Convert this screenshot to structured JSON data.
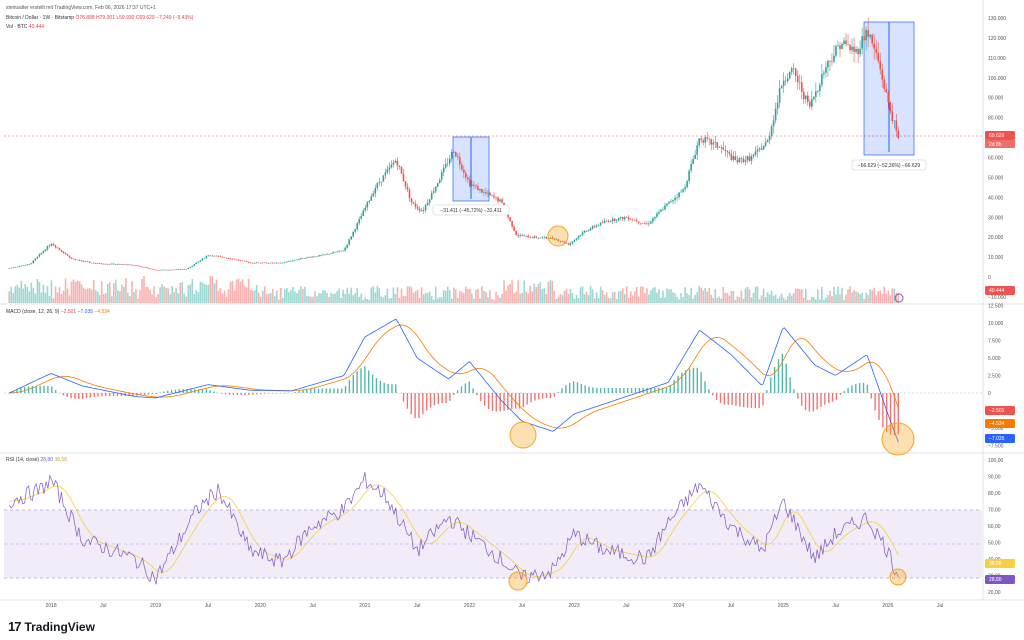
{
  "header": {
    "credit": "steinsalter erstellt mit TradingView.com, Feb 06, 2026 17:37 UTC+1",
    "symbol": "Bitcoin / Dollar · 1W · Bitstamp",
    "ohlc": "O76.888 H79.301 L59.930 C69.629 −7.249 (−9.43%)",
    "volume_label": "Vol · BTC",
    "volume_value": "40.444"
  },
  "indicators": {
    "macd_title": "MACD (close, 12, 26, 9)",
    "macd_values": [
      "−2.501",
      "−7.035",
      "−4.534"
    ],
    "rsi_title": "RSI (14, close)",
    "rsi_values": [
      "28,80",
      "38,58"
    ]
  },
  "price_axis": {
    "ticks": [
      "130.000",
      "120.000",
      "110.000",
      "100.000",
      "90.000",
      "80.000",
      "70.000",
      "60.000",
      "50.000",
      "40.000",
      "30.000",
      "20.000",
      "10.000",
      "0",
      "−10.000"
    ],
    "current_price": "69.629",
    "countdown": "2d 8h",
    "volume_badge": "40.444"
  },
  "macd_axis": {
    "ticks": [
      "12.500",
      "10.000",
      "7.500",
      "5.000",
      "2.500",
      "0",
      "−2.500",
      "−5.000",
      "−7.500"
    ],
    "badges": [
      "−2.501",
      "−4.534",
      "−7.035"
    ]
  },
  "rsi_axis": {
    "ticks": [
      "100,00",
      "90,00",
      "80,00",
      "70,00",
      "60,00",
      "50,00",
      "40,00",
      "30,00",
      "20,00"
    ],
    "badges": [
      "38,58",
      "28,80"
    ]
  },
  "time_axis": [
    "2018",
    "Jul",
    "2019",
    "Jul",
    "2020",
    "Jul",
    "2021",
    "Jul",
    "2022",
    "Jul",
    "2023",
    "Jul",
    "2024",
    "Jul",
    "2025",
    "Jul",
    "2026",
    "Jul"
  ],
  "annotations": {
    "drop_2022": "−31.411 (−45,72%) −31.411",
    "drop_2026": "−66.629 (−52,36%) −66.629"
  },
  "colors": {
    "up": "#26a69a",
    "down": "#ef5350",
    "macd": "#2962ff",
    "signal": "#f57c00",
    "rsi": "#7e57c2",
    "rsi_ma": "#f5d142",
    "highlight": "#f5a623",
    "range_box": "#2962ff"
  },
  "chart_data": [
    {
      "type": "line",
      "name": "price",
      "x": [
        2017.6,
        2017.8,
        2018.0,
        2018.2,
        2018.4,
        2018.6,
        2018.8,
        2019.0,
        2019.3,
        2019.5,
        2019.7,
        2019.9,
        2020.2,
        2020.4,
        2020.6,
        2020.8,
        2020.95,
        2021.1,
        2021.3,
        2021.45,
        2021.55,
        2021.7,
        2021.85,
        2022.0,
        2022.15,
        2022.3,
        2022.45,
        2022.6,
        2022.8,
        2022.95,
        2023.1,
        2023.3,
        2023.5,
        2023.7,
        2023.9,
        2024.05,
        2024.2,
        2024.4,
        2024.55,
        2024.7,
        2024.85,
        2025.0,
        2025.1,
        2025.25,
        2025.4,
        2025.55,
        2025.7,
        2025.8,
        2025.9,
        2026.0,
        2026.1
      ],
      "y": [
        4500,
        6500,
        17000,
        9000,
        7000,
        6500,
        6000,
        3500,
        4000,
        11000,
        9500,
        7200,
        7000,
        9500,
        11000,
        13500,
        29000,
        45000,
        59000,
        37000,
        33000,
        48000,
        64000,
        47000,
        42000,
        38000,
        21000,
        20000,
        19500,
        16500,
        23000,
        28000,
        30000,
        26500,
        37000,
        44000,
        70000,
        65000,
        58000,
        60000,
        68000,
        100000,
        103000,
        85000,
        105000,
        118000,
        113000,
        124000,
        110000,
        88000,
        69629
      ],
      "ylim": [
        -10000,
        130000
      ]
    },
    {
      "type": "line",
      "name": "macd",
      "x": [
        2017.6,
        2018.0,
        2018.3,
        2018.8,
        2019.0,
        2019.5,
        2019.9,
        2020.3,
        2020.8,
        2021.0,
        2021.3,
        2021.5,
        2021.8,
        2022.0,
        2022.3,
        2022.5,
        2022.8,
        2023.0,
        2023.5,
        2023.9,
        2024.2,
        2024.5,
        2024.8,
        2025.0,
        2025.3,
        2025.5,
        2025.8,
        2026.0,
        2026.1
      ],
      "y": [
        0,
        2800,
        1000,
        -500,
        -700,
        1200,
        400,
        300,
        2500,
        8000,
        10600,
        5000,
        2000,
        4500,
        -1000,
        -4000,
        -5500,
        -3000,
        -500,
        1500,
        9000,
        5500,
        1000,
        9500,
        4000,
        2500,
        5500,
        -3000,
        -7035
      ],
      "ylim": [
        -9000,
        13500
      ]
    },
    {
      "type": "line",
      "name": "rsi",
      "x": [
        2017.6,
        2017.9,
        2018.0,
        2018.3,
        2018.8,
        2019.0,
        2019.4,
        2019.6,
        2019.9,
        2020.2,
        2020.5,
        2020.8,
        2021.0,
        2021.2,
        2021.5,
        2021.8,
        2022.0,
        2022.3,
        2022.5,
        2022.8,
        2023.0,
        2023.3,
        2023.7,
        2023.9,
        2024.2,
        2024.5,
        2024.8,
        2025.0,
        2025.3,
        2025.5,
        2025.8,
        2026.0,
        2026.1
      ],
      "y": [
        75,
        82,
        88,
        52,
        40,
        28,
        70,
        82,
        45,
        38,
        60,
        70,
        88,
        78,
        45,
        65,
        55,
        40,
        28,
        33,
        55,
        45,
        40,
        62,
        85,
        60,
        45,
        75,
        40,
        55,
        65,
        45,
        28.8
      ],
      "ylim": [
        15,
        100
      ]
    }
  ]
}
